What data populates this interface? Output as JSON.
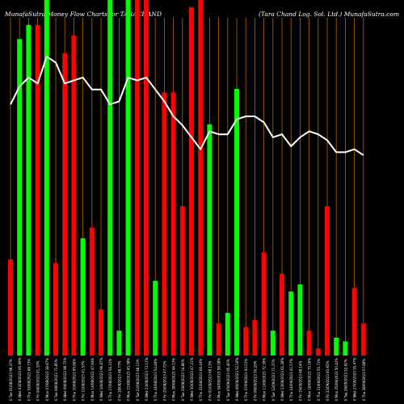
{
  "header": {
    "title_left": "MunafaSutra  Money Flow  Charts for TARACHAND",
    "title_right": "(Tara  Chand Log. Sol. Ltd.) MunafaSutra.com"
  },
  "chart_data": {
    "type": "bar",
    "title": "MunafaSutra  Money Flow  Charts for TARACHAND (Tara  Chand Log. Sol. Ltd.) MunafaSutra.com",
    "colors": {
      "up": "#00ff00",
      "down": "#ff0000",
      "grid": "#b86a00",
      "line": "#ffffff",
      "background": "#000000"
    },
    "ylim": [
      0,
      100
    ],
    "bars": [
      {
        "color": "red",
        "value": 27
      },
      {
        "color": "green",
        "value": 89
      },
      {
        "color": "green",
        "value": 93
      },
      {
        "color": "red",
        "value": 93
      },
      {
        "color": "green",
        "value": 100
      },
      {
        "color": "red",
        "value": 26
      },
      {
        "color": "red",
        "value": 85
      },
      {
        "color": "red",
        "value": 90
      },
      {
        "color": "green",
        "value": 33
      },
      {
        "color": "red",
        "value": 36
      },
      {
        "color": "red",
        "value": 13
      },
      {
        "color": "green",
        "value": 100
      },
      {
        "color": "green",
        "value": 7
      },
      {
        "color": "green",
        "value": 100
      },
      {
        "color": "red",
        "value": 100
      },
      {
        "color": "red",
        "value": 100
      },
      {
        "color": "green",
        "value": 21
      },
      {
        "color": "red",
        "value": 74
      },
      {
        "color": "red",
        "value": 74
      },
      {
        "color": "red",
        "value": 42
      },
      {
        "color": "red",
        "value": 98
      },
      {
        "color": "red",
        "value": 100
      },
      {
        "color": "green",
        "value": 65
      },
      {
        "color": "red",
        "value": 9
      },
      {
        "color": "green",
        "value": 12
      },
      {
        "color": "green",
        "value": 75
      },
      {
        "color": "red",
        "value": 8
      },
      {
        "color": "red",
        "value": 10
      },
      {
        "color": "red",
        "value": 29
      },
      {
        "color": "green",
        "value": 7
      },
      {
        "color": "red",
        "value": 23
      },
      {
        "color": "green",
        "value": 18
      },
      {
        "color": "green",
        "value": 20
      },
      {
        "color": "red",
        "value": 7
      },
      {
        "color": "red",
        "value": 2
      },
      {
        "color": "red",
        "value": 42
      },
      {
        "color": "green",
        "value": 5
      },
      {
        "color": "green",
        "value": 4
      },
      {
        "color": "red",
        "value": 19
      },
      {
        "color": "red",
        "value": 9
      }
    ],
    "line": [
      84,
      90,
      93,
      91,
      100,
      98,
      91,
      92,
      93,
      89,
      89,
      84,
      85,
      93,
      92,
      93,
      89,
      85,
      80,
      77,
      73,
      69,
      75,
      74,
      74,
      79,
      80,
      80,
      78,
      73,
      74,
      70,
      73,
      75,
      74,
      72,
      68,
      68,
      69,
      67
    ],
    "x_tick_labels": [
      "0 Tue 01/08/2023 98.37%",
      "0 Wed 02/08/2023 95.99%",
      "0 Thu 03/08/2023 86.73%",
      "0 Fri 04/08/2023 61.33%",
      "0 Mon 07/08/2023 38.67%",
      "0 Tue 08/08/2023 71.85%",
      "0 Wed 09/08/2023 98.72%",
      "0 Thu 10/08/2023 95.66%",
      "0 Fri 11/08/2023 41.57%",
      "0 Mon 14/08/2023 47.94%",
      "0 Wed 16/08/2023 96.67%",
      "0 Thu 17/08/2023 56.31%",
      "0 Fri 18/08/2023 48.77%",
      "0 Mon 21/08/2023 45.38%",
      "0 Tue 22/08/2023 48.13%",
      "0 Wed 23/08/2023 73.13%",
      "0 Thu 24/08/2023 52.84%",
      "0 Fri 25/08/2023 47.72%",
      "0 Mon 28/08/2023 44.13%",
      "0 Tue 29/08/2023 54.86%",
      "0 Wed 30/08/2023 47.21%",
      "0 Thu 31/08/2023 66.44%",
      "0 Fri 01/09/2023 68.13%",
      "0 Mon 04/09/2023 58.58%",
      "0 Tue 05/09/2023 85.40%",
      "0 Wed 06/09/2023 52.18%",
      "0 Thu 07/09/2023 92.01%",
      "0 Fri 08/09/2023 50.20%",
      "0 Mon 11/09/2023 72.39%",
      "0 Tue 12/09/2023 71.37%",
      "0 Wed 13/09/2023 61.28%",
      "0 Thu 14/09/2023 41.57%",
      "0 Fri 15/09/2023 68.14%",
      "0 Mon 18/09/2023 75.16%",
      "0 Thu 21/09/2023 55.71%",
      "0 Fri 22/09/2023 83.65%",
      "0 Mon 25/09/2023 50.42%",
      "0 Tue 26/09/2023 52.62%",
      "0 Wed 27/09/2023 55.47%",
      "0 Thu 28/09/2023 57.88%"
    ]
  }
}
